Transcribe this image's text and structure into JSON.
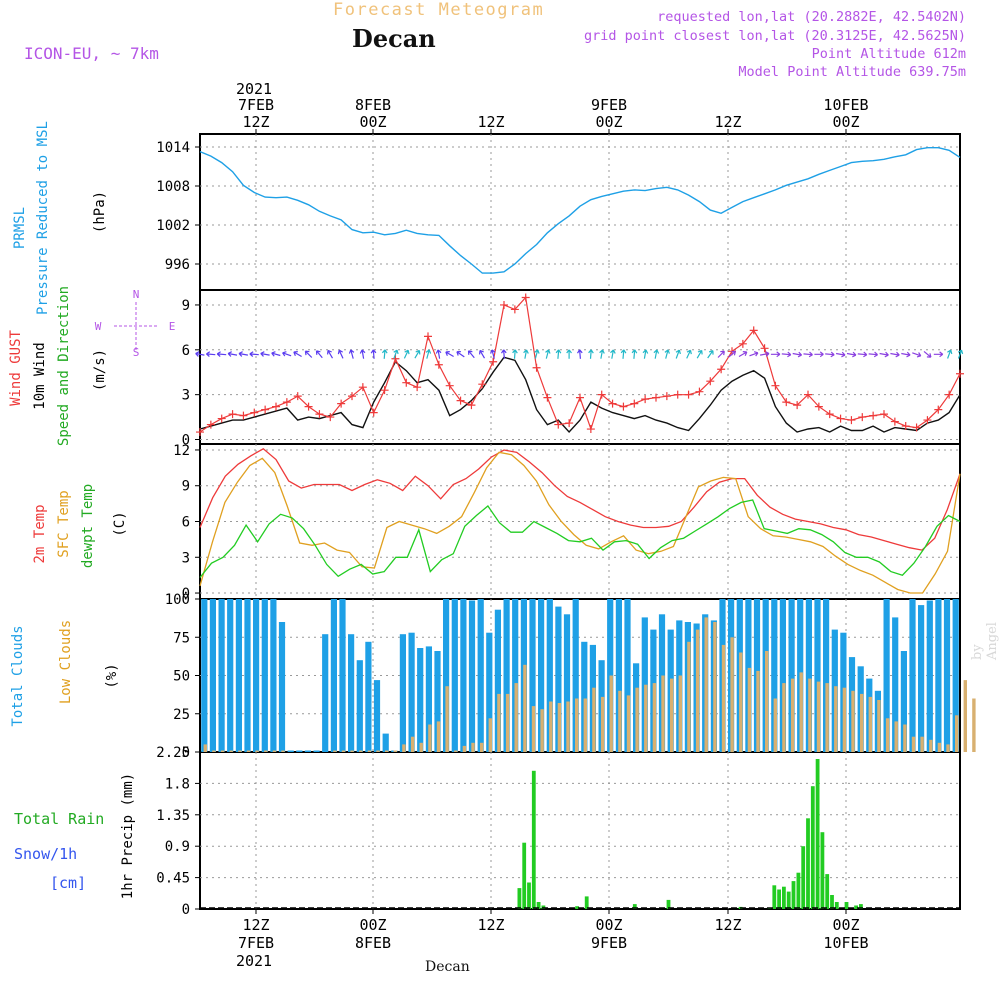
{
  "header": {
    "forecast_title": "Forecast Meteogram",
    "location": "Decan",
    "model": "ICON-EU, ~ 7km",
    "requested": "requested lon,lat (20.2882E, 42.5402N)",
    "grid_point": "grid point closest lon,lat (20.3125E, 42.5625N)",
    "point_altitude": "Point Altitude 612m",
    "model_altitude": "Model Point Altitude 639.75m"
  },
  "watermark": "by Angel",
  "x_axis_name": "Decan",
  "colors": {
    "pressure": "#1ea0e6",
    "wind": "#111111",
    "gust": "#ee3a3a",
    "temp": "#ee3a3a",
    "sfc": "#e0a020",
    "dew": "#22cc22",
    "total_clouds": "#1ea0e6",
    "low_clouds": "#d8b070",
    "rain": "#22cc22",
    "label_purple": "#b455e6",
    "snow_label": "#3355ee"
  },
  "chart_data": [
    {
      "type": "line",
      "panel": "pressure",
      "title_lines": [
        "PRMSL",
        "Pressure Reduced to MSL"
      ],
      "unit": "(hPa)",
      "x_start_hour": 0,
      "x_end_hour": 84,
      "ylim": [
        992,
        1016
      ],
      "yticks": [
        996,
        1002,
        1008,
        1014
      ],
      "series": [
        {
          "name": "PRMSL",
          "values": [
            1013.3,
            1012.6,
            1011.6,
            1010.2,
            1008.1,
            1007.0,
            1006.3,
            1006.2,
            1006.3,
            1005.8,
            1005.1,
            1004.1,
            1003.4,
            1002.8,
            1001.3,
            1000.8,
            1000.9,
            1000.5,
            1000.7,
            1001.2,
            1000.7,
            1000.5,
            1000.4,
            998.8,
            997.3,
            996.0,
            994.6,
            994.6,
            994.8,
            996.0,
            997.6,
            999.0,
            1000.8,
            1002.2,
            1003.4,
            1004.9,
            1005.9,
            1006.4,
            1006.8,
            1007.2,
            1007.4,
            1007.3,
            1007.6,
            1007.8,
            1007.4,
            1006.6,
            1005.6,
            1004.3,
            1003.8,
            1004.7,
            1005.6,
            1006.2,
            1006.8,
            1007.4,
            1008.1,
            1008.6,
            1009.1,
            1009.8,
            1010.4,
            1011.0,
            1011.6,
            1011.8,
            1011.9,
            1012.1,
            1012.5,
            1012.8,
            1013.6,
            1013.9,
            1013.9,
            1013.5,
            1012.4
          ]
        }
      ]
    },
    {
      "type": "line",
      "panel": "wind",
      "title_lines": [
        "Wind GUST",
        "10m Wind",
        "Speed and Direction"
      ],
      "unit": "(m/s)",
      "compass": {
        "north": "N",
        "south": "S",
        "west": "W",
        "east": "E"
      },
      "ylim": [
        -0.3,
        10
      ],
      "yticks": [
        0,
        3,
        6,
        9
      ],
      "series": [
        {
          "name": "10m Wind",
          "values": [
            0.7,
            0.9,
            1.1,
            1.3,
            1.3,
            1.5,
            1.7,
            1.9,
            2.1,
            1.3,
            1.5,
            1.4,
            1.6,
            1.8,
            1.0,
            0.8,
            2.5,
            3.8,
            5.2,
            4.6,
            3.8,
            4.0,
            3.3,
            1.6,
            2.0,
            2.6,
            3.4,
            4.5,
            5.5,
            5.3,
            4.0,
            2.0,
            1.0,
            1.3,
            0.5,
            1.3,
            2.5,
            2.1,
            1.8,
            1.6,
            1.4,
            1.6,
            1.3,
            1.1,
            0.8,
            0.6,
            1.4,
            2.3,
            3.3,
            3.9,
            4.3,
            4.6,
            4.1,
            2.2,
            1.1,
            0.5,
            0.7,
            0.8,
            0.5,
            0.9,
            0.6,
            0.6,
            0.9,
            0.5,
            0.8,
            0.7,
            0.6,
            1.1,
            1.3,
            1.8,
            3.0
          ]
        },
        {
          "name": "Wind GUST",
          "values": [
            0.5,
            1.0,
            1.4,
            1.7,
            1.6,
            1.8,
            2.0,
            2.2,
            2.5,
            2.9,
            2.2,
            1.7,
            1.5,
            2.4,
            2.9,
            3.5,
            1.8,
            3.3,
            5.4,
            3.8,
            3.5,
            6.9,
            5.0,
            3.6,
            2.6,
            2.3,
            3.7,
            5.2,
            9.0,
            8.7,
            9.5,
            4.8,
            2.8,
            1.0,
            1.1,
            2.8,
            0.7,
            3.0,
            2.4,
            2.2,
            2.4,
            2.7,
            2.8,
            2.9,
            3.0,
            3.0,
            3.2,
            3.9,
            4.7,
            5.9,
            6.4,
            7.3,
            6.1,
            3.6,
            2.5,
            2.3,
            3.0,
            2.2,
            1.7,
            1.4,
            1.3,
            1.5,
            1.6,
            1.7,
            1.2,
            0.9,
            0.8,
            1.3,
            2.0,
            3.0,
            4.4
          ]
        }
      ],
      "direction_deg": [
        280,
        275,
        275,
        280,
        280,
        275,
        280,
        285,
        290,
        300,
        315,
        320,
        330,
        335,
        345,
        350,
        355,
        5,
        20,
        25,
        30,
        15,
        350,
        300,
        305,
        320,
        330,
        345,
        355,
        5,
        10,
        15,
        15,
        5,
        0,
        355,
        5,
        10,
        10,
        5,
        5,
        10,
        10,
        15,
        20,
        25,
        30,
        35,
        45,
        50,
        60,
        70,
        80,
        90,
        95,
        100,
        95,
        90,
        95,
        100,
        100,
        95,
        95,
        100,
        100,
        100,
        110,
        130,
        90,
        20,
        20
      ]
    },
    {
      "type": "line",
      "panel": "temperature",
      "title_lines": [
        "2m Temp",
        "SFC Temp",
        "dewpt Temp"
      ],
      "unit": "(C)",
      "ylim": [
        -0.5,
        12.5
      ],
      "yticks": [
        0,
        3,
        6,
        9,
        12
      ],
      "series": [
        {
          "name": "2m Temp",
          "values": [
            5.5,
            8.0,
            9.8,
            10.8,
            11.5,
            12.1,
            11.2,
            9.4,
            8.8,
            9.1,
            9.1,
            9.1,
            8.6,
            9.1,
            9.5,
            9.2,
            8.6,
            9.8,
            9.0,
            7.9,
            9.1,
            9.6,
            10.4,
            11.4,
            12.0,
            11.8,
            11.0,
            10.1,
            9.0,
            8.1,
            7.6,
            7.0,
            6.4,
            6.0,
            5.7,
            5.5,
            5.5,
            5.6,
            6.0,
            7.2,
            8.5,
            9.3,
            9.6,
            9.6,
            8.2,
            7.2,
            6.6,
            6.2,
            6.0,
            5.8,
            5.5,
            5.3,
            4.9,
            4.7,
            4.4,
            4.1,
            3.8,
            3.6,
            4.6,
            7.0,
            10.0
          ]
        },
        {
          "name": "SFC Temp",
          "values": [
            0.6,
            4.3,
            7.6,
            9.3,
            10.7,
            11.3,
            10.1,
            7.3,
            4.2,
            4.0,
            4.2,
            3.6,
            3.4,
            2.2,
            2.1,
            5.5,
            6.0,
            5.7,
            5.4,
            5.0,
            5.6,
            6.4,
            8.4,
            10.5,
            11.8,
            11.6,
            10.7,
            9.4,
            7.4,
            6.0,
            4.9,
            4.0,
            3.7,
            4.3,
            4.8,
            3.6,
            3.3,
            3.5,
            3.9,
            6.4,
            8.9,
            9.4,
            9.7,
            9.6,
            6.4,
            5.4,
            4.8,
            4.7,
            4.5,
            4.3,
            3.9,
            3.1,
            2.4,
            1.9,
            1.5,
            0.9,
            0.3,
            0.0,
            0.0,
            1.6,
            3.5,
            10.0
          ]
        },
        {
          "name": "dewpt Temp",
          "values": [
            1.3,
            2.5,
            3.0,
            4.0,
            5.7,
            4.3,
            5.8,
            6.6,
            6.3,
            5.4,
            4.0,
            2.4,
            1.4,
            2.0,
            2.4,
            1.6,
            1.8,
            3.0,
            3.0,
            5.3,
            1.8,
            2.8,
            3.3,
            5.6,
            6.5,
            7.3,
            5.9,
            5.1,
            5.1,
            6.0,
            5.5,
            5.0,
            4.4,
            4.3,
            4.6,
            3.6,
            4.3,
            4.4,
            4.1,
            2.9,
            3.8,
            4.4,
            4.6,
            5.2,
            5.8,
            6.4,
            7.1,
            7.6,
            7.8,
            5.4,
            5.2,
            5.0,
            5.4,
            5.3,
            4.9,
            4.3,
            3.4,
            3.0,
            3.0,
            2.6,
            1.8,
            1.5,
            2.5,
            3.9,
            5.6,
            6.5,
            6.0
          ]
        }
      ]
    },
    {
      "type": "bar",
      "panel": "clouds",
      "title_lines": [
        "Total Clouds",
        "Low Clouds"
      ],
      "unit": "(%)",
      "ylim": [
        0,
        100
      ],
      "yticks": [
        0,
        25,
        50,
        75,
        100
      ],
      "series": [
        {
          "name": "Total Clouds",
          "values": [
            100,
            100,
            100,
            100,
            100,
            100,
            100,
            100,
            100,
            85,
            1,
            1,
            1,
            1,
            77,
            100,
            100,
            77,
            60,
            72,
            47,
            12,
            1,
            77,
            78,
            68,
            69,
            66,
            100,
            100,
            100,
            99,
            100,
            78,
            93,
            100,
            100,
            100,
            100,
            100,
            100,
            95,
            90,
            100,
            72,
            70,
            60,
            100,
            100,
            100,
            58,
            88,
            80,
            90,
            80,
            86,
            85,
            84,
            90,
            86,
            100,
            100,
            100,
            100,
            100,
            100,
            100,
            100,
            100,
            100,
            100,
            100,
            100,
            80,
            78,
            62,
            56,
            48,
            40,
            100,
            88,
            66,
            100,
            96,
            99,
            100,
            100,
            100
          ]
        },
        {
          "name": "Low Clouds",
          "values": [
            5,
            1,
            1,
            1,
            1,
            1,
            1,
            1,
            1,
            1,
            0,
            0,
            0,
            0,
            0,
            1,
            1,
            1,
            1,
            1,
            1,
            1,
            1,
            5,
            10,
            6,
            18,
            20,
            43,
            1,
            4,
            6,
            6,
            22,
            38,
            38,
            45,
            57,
            30,
            28,
            33,
            32,
            33,
            35,
            35,
            42,
            36,
            50,
            40,
            37,
            42,
            44,
            45,
            50,
            48,
            50,
            72,
            80,
            88,
            85,
            70,
            75,
            65,
            55,
            53,
            66,
            35,
            45,
            48,
            52,
            48,
            46,
            45,
            43,
            42,
            40,
            38,
            36,
            34,
            22,
            20,
            18,
            10,
            10,
            8,
            6,
            5,
            24,
            47,
            35
          ]
        }
      ]
    },
    {
      "type": "bar",
      "panel": "precipitation",
      "title_lines": [
        "Total Rain",
        "Snow/1h",
        "[cm]"
      ],
      "unit": "1hr Precip (mm)",
      "ylim": [
        0,
        2.25
      ],
      "yticks": [
        "0",
        "0.45",
        "0.9",
        "1.35",
        "1.8",
        "2.25"
      ],
      "series": [
        {
          "name": "Total Rain",
          "values": [
            0,
            0,
            0,
            0,
            0,
            0,
            0,
            0,
            0,
            0,
            0,
            0,
            0,
            0,
            0,
            0,
            0,
            0,
            0,
            0,
            0,
            0,
            0,
            0,
            0,
            0,
            0,
            0,
            0,
            0,
            0,
            0,
            0,
            0,
            0,
            0,
            0,
            0,
            0,
            0,
            0,
            0,
            0,
            0,
            0,
            0,
            0,
            0,
            0,
            0,
            0,
            0,
            0,
            0,
            0,
            0,
            0,
            0,
            0,
            0,
            0,
            0,
            0,
            0,
            0,
            0,
            0.3,
            0.95,
            0.38,
            1.98,
            0.1,
            0.05,
            0,
            0,
            0,
            0,
            0,
            0,
            0.04,
            0,
            0.18,
            0,
            0,
            0,
            0,
            0,
            0,
            0,
            0,
            0,
            0.07,
            0,
            0,
            0,
            0,
            0,
            0,
            0.13,
            0,
            0,
            0,
            0,
            0,
            0,
            0,
            0,
            0,
            0,
            0,
            0,
            0,
            0,
            0.03,
            0,
            0,
            0,
            0,
            0,
            0.02,
            0.34,
            0.28,
            0.32,
            0.25,
            0.4,
            0.52,
            0.9,
            1.3,
            1.76,
            2.15,
            1.1,
            0.5,
            0.2,
            0.1,
            0,
            0.1,
            0,
            0.05,
            0.07,
            0,
            0,
            0,
            0,
            0,
            0,
            0,
            0,
            0,
            0,
            0,
            0,
            0,
            0,
            0,
            0,
            0,
            0,
            0,
            0
          ]
        }
      ]
    }
  ],
  "time_axis": {
    "top_years": [
      "2021"
    ],
    "top_dates": [
      "7FEB",
      "8FEB",
      "9FEB",
      "10FEB"
    ],
    "top_hours": [
      "12Z",
      "00Z",
      "12Z",
      "00Z",
      "12Z",
      "00Z"
    ],
    "bottom_hours": [
      "12Z",
      "00Z",
      "12Z",
      "00Z",
      "12Z",
      "00Z"
    ],
    "bottom_dates": [
      "7FEB",
      "8FEB",
      "9FEB",
      "10FEB"
    ],
    "bottom_years": [
      "2021"
    ]
  }
}
